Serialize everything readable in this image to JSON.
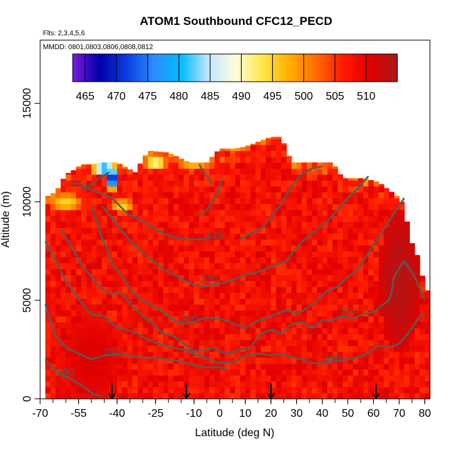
{
  "chart_data": {
    "type": "heatmap",
    "title": "ATOM1 Southbound CFC12_PECD",
    "flights_note": "Flts: 2,3,4,5,6",
    "dates_note": "MMDD: 0801,0803,0806,0808,0812",
    "xlabel": "Latitude (deg N)",
    "ylabel": "Altitude (m)",
    "xlim": [
      -70,
      82
    ],
    "ylim": [
      0,
      17500
    ],
    "x_major_ticks": [
      -70,
      -55,
      -40,
      -25,
      -10,
      0,
      10,
      20,
      30,
      40,
      50,
      60,
      70,
      80
    ],
    "x_minor_step": 5,
    "y_ticks": [
      0,
      5000,
      10000,
      15000
    ],
    "colorbar": {
      "ticks": [
        465,
        470,
        475,
        480,
        485,
        490,
        495,
        500,
        505,
        510
      ],
      "range": [
        463,
        515
      ],
      "colors": [
        "#7a1ae0",
        "#0000a8",
        "#0a3de0",
        "#2e8cff",
        "#00bbff",
        "#bfe6ff",
        "#fffce0",
        "#ffe84a",
        "#ffb000",
        "#ff6a00",
        "#ff1a00",
        "#e00000",
        "#a81a1a"
      ]
    },
    "data_extent": {
      "tops": [
        [
          -68,
          10300
        ],
        [
          -66,
          10300
        ],
        [
          -63,
          10700
        ],
        [
          -60,
          11400
        ],
        [
          -57,
          11600
        ],
        [
          -54,
          11900
        ],
        [
          -50,
          11900
        ],
        [
          -46,
          12000
        ],
        [
          -40,
          12000
        ],
        [
          -33,
          11500
        ],
        [
          -28,
          12600
        ],
        [
          -20,
          12500
        ],
        [
          -12,
          12000
        ],
        [
          -5,
          12000
        ],
        [
          0,
          12700
        ],
        [
          5,
          12700
        ],
        [
          10,
          12800
        ],
        [
          20,
          13300
        ],
        [
          24,
          13300
        ],
        [
          28,
          12000
        ],
        [
          40,
          12000
        ],
        [
          44,
          12000
        ],
        [
          48,
          11200
        ],
        [
          56,
          11200
        ],
        [
          62,
          11000
        ],
        [
          66,
          10600
        ],
        [
          70,
          10200
        ],
        [
          72,
          9800
        ],
        [
          74,
          8200
        ],
        [
          76,
          7600
        ],
        [
          78,
          7000
        ],
        [
          80,
          5500
        ]
      ],
      "bottom": 0,
      "x_range": [
        -68,
        81
      ]
    },
    "cell_size": {
      "dlat": 2,
      "dalt": 300
    },
    "field": {
      "base_value": 508,
      "low_regions": [
        {
          "lat": -42,
          "alt": 11200,
          "value": 468,
          "radius_lat": 3,
          "radius_alt": 600
        },
        {
          "lat": -45,
          "alt": 11700,
          "value": 478,
          "radius_lat": 5,
          "radius_alt": 400
        },
        {
          "lat": -60,
          "alt": 10000,
          "value": 495,
          "radius_lat": 7,
          "radius_alt": 500
        },
        {
          "lat": -38,
          "alt": 9800,
          "value": 495,
          "radius_lat": 5,
          "radius_alt": 400
        },
        {
          "lat": -25,
          "alt": 12000,
          "value": 488,
          "radius_lat": 5,
          "radius_alt": 300
        },
        {
          "lat": -10,
          "alt": 12000,
          "value": 495,
          "radius_lat": 8,
          "radius_alt": 300
        },
        {
          "lat": 5,
          "alt": 12700,
          "value": 499,
          "radius_lat": 4,
          "radius_alt": 200
        },
        {
          "lat": 73,
          "alt": 9700,
          "value": 478,
          "radius_lat": 2,
          "radius_alt": 500
        }
      ],
      "high_regions": [
        {
          "lat": 70,
          "alt": 6000,
          "value": 514,
          "radius_lat": 8,
          "radius_alt": 3500
        },
        {
          "lat": -50,
          "alt": 2000,
          "value": 511,
          "radius_lat": 12,
          "radius_alt": 2500
        }
      ]
    },
    "contours": [
      {
        "label": "280",
        "label_at": [
          -60,
          1200
        ],
        "points": [
          [
            -68,
            2000
          ],
          [
            -64,
            1400
          ],
          [
            -58,
            1000
          ],
          [
            -54,
            700
          ],
          [
            -50,
            300
          ],
          [
            -46,
            100
          ]
        ]
      },
      {
        "label": "290",
        "label_at": [
          -42,
          2200
        ],
        "points": [
          [
            -68,
            4800
          ],
          [
            -64,
            3200
          ],
          [
            -60,
            2600
          ],
          [
            -55,
            2300
          ],
          [
            -50,
            2000
          ],
          [
            -45,
            2200
          ],
          [
            -38,
            2300
          ],
          [
            -32,
            2100
          ],
          [
            -26,
            2100
          ],
          [
            -20,
            2000
          ],
          [
            -15,
            1900
          ],
          [
            -10,
            1700
          ],
          [
            -5,
            1600
          ],
          [
            0,
            1600
          ],
          [
            3,
            1500
          ]
        ]
      },
      {
        "label": "300",
        "label_at": [
          44,
          1900
        ],
        "points": [
          [
            -68,
            8000
          ],
          [
            -64,
            7000
          ],
          [
            -60,
            6000
          ],
          [
            -56,
            5200
          ],
          [
            -50,
            4300
          ],
          [
            -45,
            4200
          ],
          [
            -40,
            3600
          ],
          [
            -36,
            3500
          ],
          [
            -32,
            3300
          ],
          [
            -28,
            3000
          ],
          [
            -24,
            2800
          ],
          [
            -18,
            2600
          ],
          [
            -14,
            2500
          ],
          [
            -10,
            2300
          ],
          [
            -6,
            2100
          ],
          [
            0,
            1800
          ],
          [
            6,
            1900
          ],
          [
            10,
            2200
          ],
          [
            16,
            2300
          ],
          [
            20,
            2200
          ],
          [
            24,
            2300
          ],
          [
            28,
            2100
          ],
          [
            32,
            2000
          ],
          [
            36,
            1800
          ],
          [
            40,
            1800
          ],
          [
            44,
            1900
          ],
          [
            50,
            2000
          ],
          [
            56,
            2200
          ],
          [
            62,
            2700
          ],
          [
            66,
            2600
          ],
          [
            70,
            2800
          ],
          [
            74,
            3400
          ],
          [
            78,
            4200
          ],
          [
            80,
            4300
          ]
        ]
      },
      {
        "label": "310",
        "label_at": [
          50,
          4300
        ],
        "points": [
          [
            -62,
            8600
          ],
          [
            -58,
            7800
          ],
          [
            -54,
            6800
          ],
          [
            -50,
            6200
          ],
          [
            -46,
            5600
          ],
          [
            -42,
            5300
          ],
          [
            -40,
            5400
          ],
          [
            -38,
            5300
          ],
          [
            -34,
            4700
          ],
          [
            -30,
            4200
          ],
          [
            -26,
            3800
          ],
          [
            -22,
            3300
          ],
          [
            -18,
            3200
          ],
          [
            -14,
            2800
          ],
          [
            -10,
            2400
          ],
          [
            -6,
            2500
          ],
          [
            -2,
            2600
          ],
          [
            0,
            2400
          ],
          [
            4,
            2300
          ],
          [
            8,
            2500
          ],
          [
            12,
            2600
          ],
          [
            16,
            3300
          ],
          [
            20,
            3500
          ],
          [
            24,
            3300
          ],
          [
            28,
            3800
          ],
          [
            32,
            3900
          ],
          [
            36,
            3600
          ],
          [
            40,
            4000
          ],
          [
            44,
            4000
          ],
          [
            48,
            4200
          ],
          [
            52,
            4100
          ],
          [
            56,
            4300
          ],
          [
            60,
            4400
          ],
          [
            62,
            4600
          ],
          [
            64,
            4800
          ],
          [
            66,
            5000
          ],
          [
            67,
            5400
          ],
          [
            68,
            6200
          ],
          [
            70,
            6600
          ],
          [
            72,
            7000
          ],
          [
            74,
            6600
          ],
          [
            76,
            6200
          ],
          [
            78,
            5600
          ],
          [
            80,
            5000
          ]
        ]
      },
      {
        "label": "320",
        "label_at": [
          -12,
          3900
        ],
        "points": [
          [
            -50,
            9800
          ],
          [
            -48,
            9000
          ],
          [
            -46,
            8200
          ],
          [
            -44,
            7600
          ],
          [
            -42,
            6900
          ],
          [
            -40,
            6500
          ],
          [
            -38,
            6200
          ],
          [
            -36,
            5800
          ],
          [
            -34,
            5400
          ],
          [
            -30,
            5000
          ],
          [
            -26,
            4700
          ],
          [
            -22,
            4400
          ],
          [
            -18,
            4000
          ],
          [
            -14,
            3800
          ],
          [
            -10,
            3900
          ],
          [
            -6,
            4100
          ],
          [
            -2,
            4100
          ],
          [
            2,
            4000
          ],
          [
            6,
            3800
          ],
          [
            10,
            3600
          ],
          [
            14,
            3900
          ],
          [
            18,
            4100
          ],
          [
            22,
            4300
          ],
          [
            26,
            4500
          ],
          [
            30,
            4300
          ],
          [
            34,
            4600
          ],
          [
            38,
            5000
          ],
          [
            42,
            5500
          ],
          [
            46,
            5700
          ],
          [
            50,
            6200
          ],
          [
            54,
            6600
          ],
          [
            58,
            7400
          ],
          [
            62,
            8200
          ],
          [
            66,
            9000
          ],
          [
            70,
            9800
          ],
          [
            72,
            10200
          ]
        ]
      },
      {
        "label": "330",
        "label_at": [
          -4,
          5900
        ],
        "points": [
          [
            -46,
            9800
          ],
          [
            -42,
            9200
          ],
          [
            -38,
            8500
          ],
          [
            -34,
            7900
          ],
          [
            -30,
            7400
          ],
          [
            -26,
            7000
          ],
          [
            -22,
            6600
          ],
          [
            -18,
            6300
          ],
          [
            -14,
            6000
          ],
          [
            -10,
            5800
          ],
          [
            -6,
            5700
          ],
          [
            -2,
            5800
          ],
          [
            2,
            5900
          ],
          [
            6,
            6100
          ],
          [
            10,
            6300
          ],
          [
            14,
            6400
          ],
          [
            18,
            6600
          ],
          [
            22,
            6800
          ],
          [
            26,
            7000
          ],
          [
            30,
            7700
          ],
          [
            34,
            8200
          ],
          [
            38,
            8600
          ],
          [
            42,
            9000
          ],
          [
            46,
            9600
          ],
          [
            50,
            10200
          ],
          [
            54,
            10700
          ],
          [
            58,
            11300
          ]
        ]
      },
      {
        "label": "340",
        "label_at": [
          -2,
          8100
        ],
        "points": [
          [
            -58,
            11000
          ],
          [
            -54,
            10900
          ],
          [
            -50,
            10600
          ],
          [
            -46,
            10400
          ],
          [
            -42,
            10200
          ],
          [
            -36,
            9400
          ],
          [
            -30,
            9000
          ],
          [
            -26,
            8700
          ],
          [
            -22,
            8400
          ],
          [
            -18,
            8200
          ],
          [
            -14,
            8100
          ],
          [
            -10,
            8100
          ],
          [
            -6,
            8100
          ],
          [
            -4,
            8200
          ]
        ]
      },
      {
        "label": "",
        "label_at": [
          0,
          0
        ],
        "points": [
          [
            8,
            8100
          ],
          [
            12,
            8400
          ],
          [
            16,
            8600
          ],
          [
            20,
            9200
          ],
          [
            24,
            9900
          ],
          [
            28,
            10800
          ],
          [
            32,
            11400
          ],
          [
            36,
            11700
          ],
          [
            40,
            11800
          ]
        ]
      },
      {
        "label": "",
        "label_at": [
          0,
          0
        ],
        "points": [
          [
            -3,
            10900
          ],
          [
            -6,
            11500
          ],
          [
            -8,
            11900
          ]
        ]
      },
      {
        "label": "",
        "label_at": [
          0,
          0
        ],
        "points": [
          [
            -8,
            9300
          ],
          [
            -5,
            9600
          ],
          [
            -3,
            10000
          ],
          [
            -1,
            10400
          ],
          [
            1,
            11200
          ]
        ]
      },
      {
        "label": "",
        "label_at": [
          0,
          0
        ],
        "points": [
          [
            -54,
            10600
          ],
          [
            -51,
            10800
          ],
          [
            -47,
            11200
          ],
          [
            -43,
            11500
          ]
        ]
      }
    ],
    "arrows_at_lat": [
      -42,
      -13,
      20,
      61
    ]
  }
}
